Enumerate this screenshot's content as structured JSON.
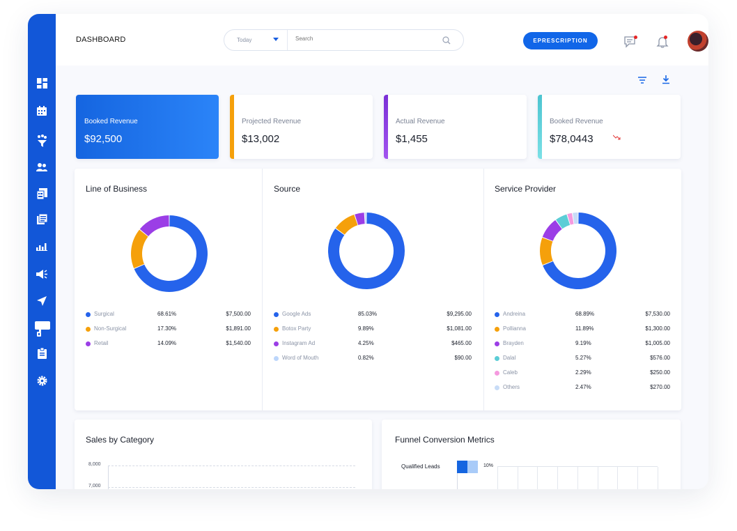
{
  "header": {
    "title": "DASHBOARD",
    "period": "Today",
    "search_placeholder": "Search",
    "eprescription": "EPRESCRIPTION"
  },
  "sidebar": {
    "items": [
      "dashboard",
      "calendar",
      "funnel",
      "users",
      "billing",
      "records",
      "reports",
      "announcements",
      "navigation",
      "chat",
      "clipboard",
      "settings"
    ]
  },
  "stats": [
    {
      "label": "Booked Revenue",
      "value": "$92,500",
      "accent": "#1565e0"
    },
    {
      "label": "Projected Revenue",
      "value": "$13,002",
      "accent": "#f5a00b"
    },
    {
      "label": "Actual Revenue",
      "value": "$1,455",
      "accent": "#8a3bd9"
    },
    {
      "label": "Booked Revenue",
      "value": "$78,0443",
      "accent": "#5ccdd6"
    }
  ],
  "donuts": [
    {
      "title": "Line of Business",
      "items": [
        {
          "name": "Surgical",
          "pct": "68.61%",
          "amount": "$7,500.00",
          "value": 68.61,
          "color": "#2563eb"
        },
        {
          "name": "Non-Surgical",
          "pct": "17.30%",
          "amount": "$1,891.00",
          "value": 17.3,
          "color": "#f5a00b"
        },
        {
          "name": "Retail",
          "pct": "14.09%",
          "amount": "$1,540.00",
          "value": 14.09,
          "color": "#9b3ee6"
        }
      ]
    },
    {
      "title": "Source",
      "items": [
        {
          "name": "Google Ads",
          "pct": "85.03%",
          "amount": "$9,295.00",
          "value": 85.03,
          "color": "#2563eb"
        },
        {
          "name": "Botox Party",
          "pct": "9.89%",
          "amount": "$1,081.00",
          "value": 9.89,
          "color": "#f5a00b"
        },
        {
          "name": "Instagram Ad",
          "pct": "4.25%",
          "amount": "$465.00",
          "value": 4.25,
          "color": "#9b3ee6"
        },
        {
          "name": "Word of Mouth",
          "pct": "0.82%",
          "amount": "$90.00",
          "value": 0.82,
          "color": "#bcd6fb"
        }
      ]
    },
    {
      "title": "Service Provider",
      "items": [
        {
          "name": "Andreina",
          "pct": "68.89%",
          "amount": "$7,530.00",
          "value": 68.89,
          "color": "#2563eb"
        },
        {
          "name": "Pollianna",
          "pct": "11.89%",
          "amount": "$1,300.00",
          "value": 11.89,
          "color": "#f5a00b"
        },
        {
          "name": "Brayden",
          "pct": "9.19%",
          "amount": "$1,005.00",
          "value": 9.19,
          "color": "#9b3ee6"
        },
        {
          "name": "Dalal",
          "pct": "5.27%",
          "amount": "$576.00",
          "value": 5.27,
          "color": "#5ccdd6"
        },
        {
          "name": "Caleb",
          "pct": "2.29%",
          "amount": "$250.00",
          "value": 2.29,
          "color": "#f59adf"
        },
        {
          "name": "Others",
          "pct": "2.47%",
          "amount": "$270.00",
          "value": 2.47,
          "color": "#c8dcf7"
        }
      ]
    }
  ],
  "sales_by_category": {
    "title": "Sales by Category",
    "y_ticks": [
      "8,000",
      "7,000"
    ]
  },
  "funnel": {
    "title": "Funnel Conversion Metrics",
    "row_label": "Qualified Leads",
    "row_value": "10%",
    "fraction": 0.1
  }
}
